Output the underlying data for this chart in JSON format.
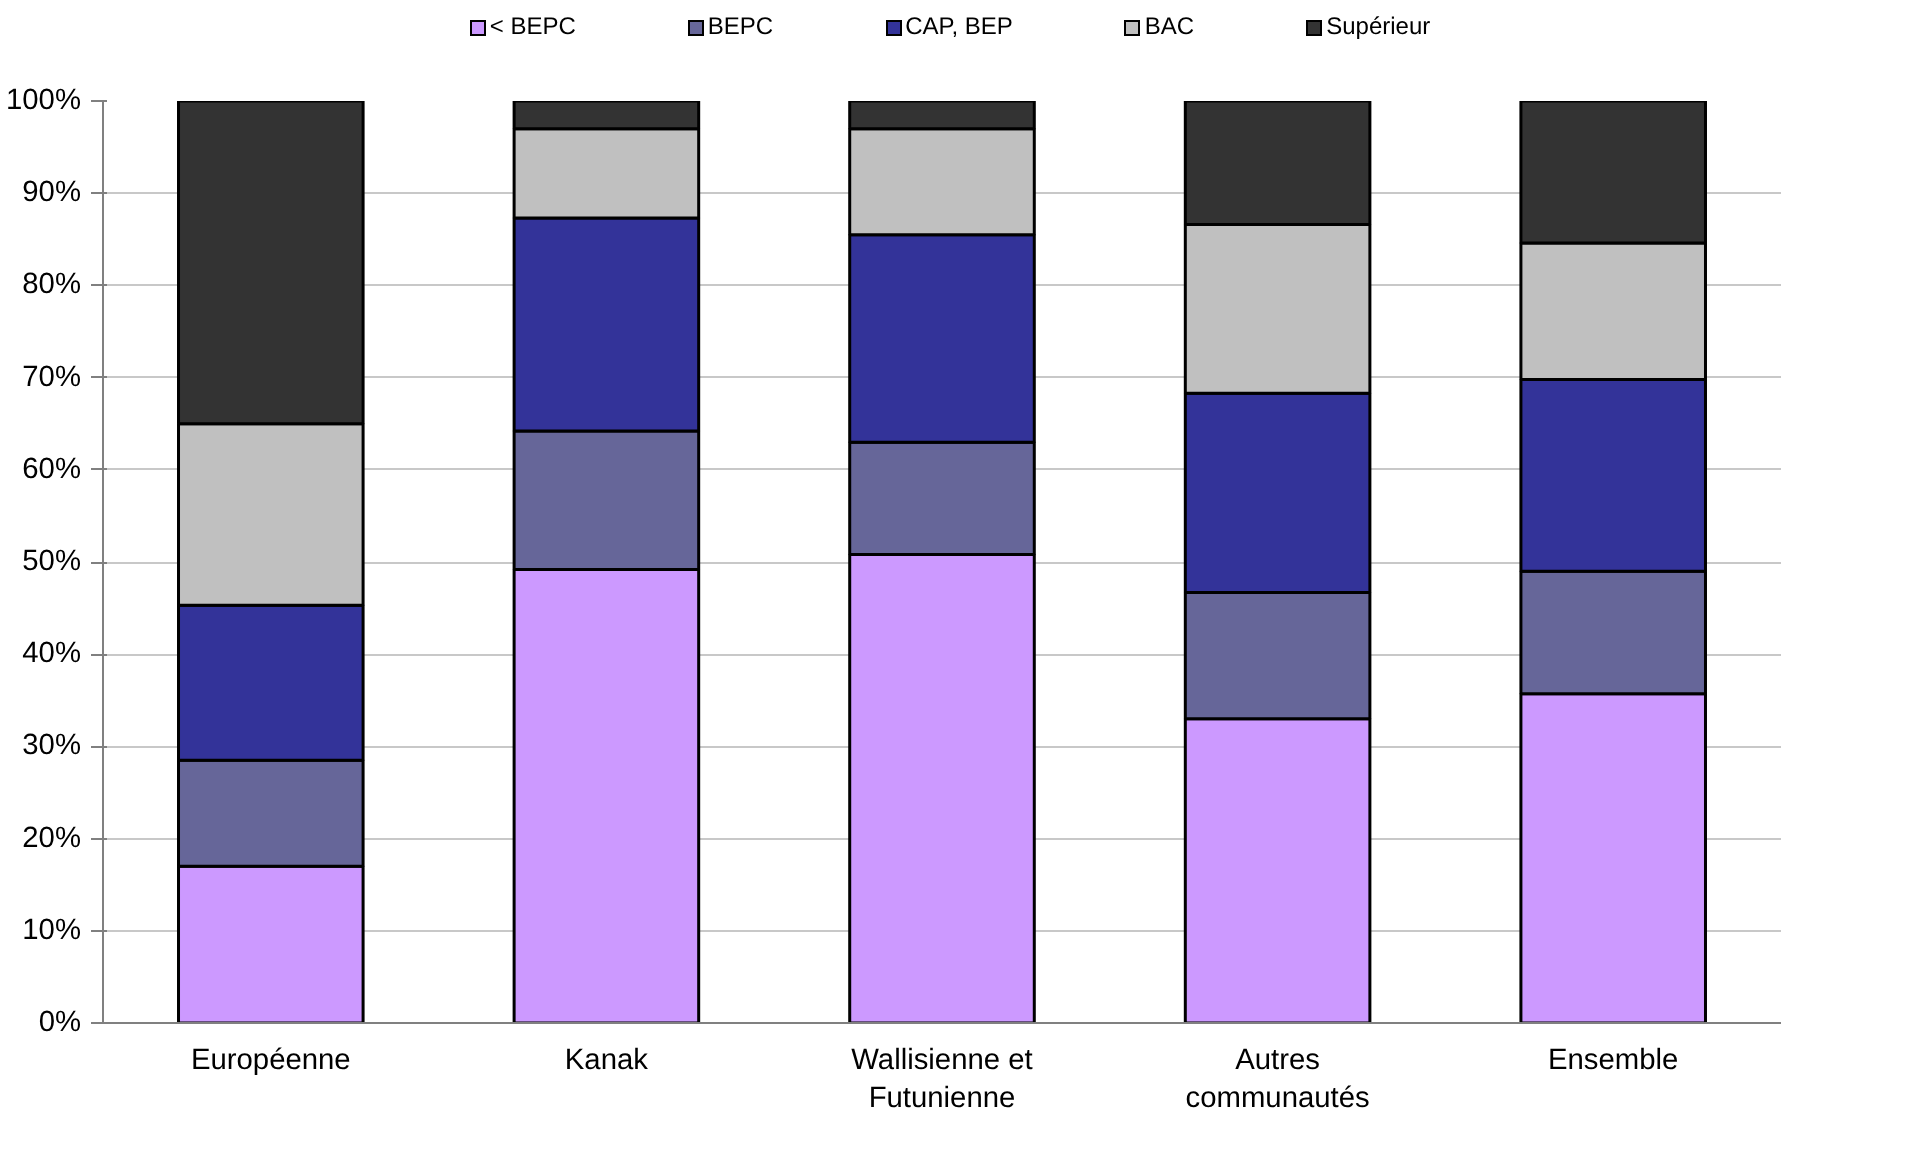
{
  "chart_data": {
    "type": "bar",
    "stacked": true,
    "categories": [
      "Européenne",
      "Kanak",
      "Wallisienne et Futunienne",
      "Autres communautés",
      "Ensemble"
    ],
    "series": [
      {
        "name": "< BEPC",
        "color": "#cc99ff",
        "values": [
          17,
          49.2,
          50.8,
          33,
          35.7
        ]
      },
      {
        "name": "BEPC",
        "color": "#666699",
        "values": [
          11.5,
          15,
          12.2,
          13.7,
          13.3
        ]
      },
      {
        "name": "CAP, BEP",
        "color": "#333399",
        "values": [
          16.8,
          23.1,
          22.5,
          21.6,
          20.8
        ]
      },
      {
        "name": "BAC",
        "color": "#c0c0c0",
        "values": [
          19.7,
          9.7,
          11.5,
          18.3,
          14.8
        ]
      },
      {
        "name": "Supérieur",
        "color": "#333333",
        "values": [
          35,
          3,
          3,
          13.4,
          15.4
        ]
      }
    ],
    "ylim": [
      0,
      100
    ],
    "yticks": [
      {
        "value": 0,
        "label": "0%"
      },
      {
        "value": 10,
        "label": "10%"
      },
      {
        "value": 20,
        "label": "20%"
      },
      {
        "value": 30,
        "label": "30%"
      },
      {
        "value": 40,
        "label": "40%"
      },
      {
        "value": 50,
        "label": "50%"
      },
      {
        "value": 60,
        "label": "60%"
      },
      {
        "value": 70,
        "label": "70%"
      },
      {
        "value": 80,
        "label": "80%"
      },
      {
        "value": 90,
        "label": "90%"
      },
      {
        "value": 100,
        "label": "100%"
      }
    ],
    "grid": "y",
    "legend": "top"
  }
}
